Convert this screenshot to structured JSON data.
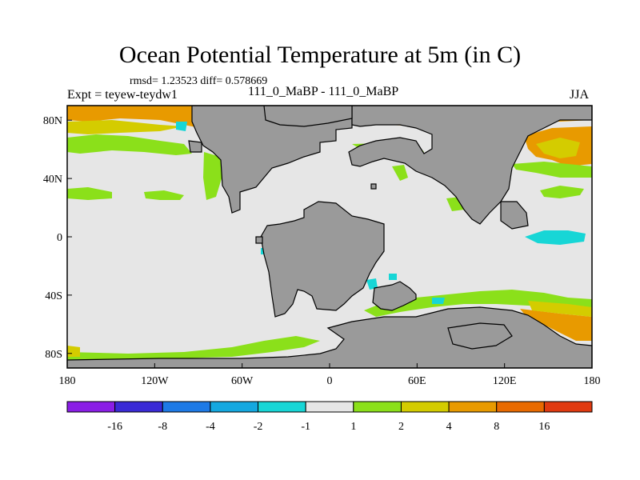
{
  "title": "Ocean Potential Temperature at 5m (in C)",
  "stats": "rmsd= 1.23523 diff= 0.578669",
  "experiment": "Expt = teyew-teydw1",
  "runs": "111_0_MaBP - 111_0_MaBP",
  "season": "JJA",
  "colors": {
    "land": "#9a9a9a",
    "neutral": "#e6e6e6",
    "pos1": "#8be01a",
    "pos2": "#d4cc00",
    "pos3": "#e89a00",
    "neg1": "#17d6d6",
    "neg2": "#14a8e0"
  },
  "map": {
    "lon_range": [
      -180,
      180
    ],
    "lat_range": [
      -90,
      90
    ],
    "lon_ticks": [
      {
        "value": -180,
        "label": "180"
      },
      {
        "value": -120,
        "label": "120W"
      },
      {
        "value": -60,
        "label": "60W"
      },
      {
        "value": 0,
        "label": "0"
      },
      {
        "value": 60,
        "label": "60E"
      },
      {
        "value": 120,
        "label": "120E"
      },
      {
        "value": 180,
        "label": "180"
      }
    ],
    "lat_ticks": [
      {
        "value": 80,
        "label": "80N"
      },
      {
        "value": 40,
        "label": "40N"
      },
      {
        "value": 0,
        "label": "0"
      },
      {
        "value": -40,
        "label": "40S"
      },
      {
        "value": -80,
        "label": "80S"
      }
    ]
  },
  "colorbar": {
    "colors": [
      "#8a1ee6",
      "#3a2ad6",
      "#1e7ae6",
      "#14a8e0",
      "#17d6d6",
      "#e6e6e6",
      "#8be01a",
      "#d4cc00",
      "#e89a00",
      "#e86a00",
      "#e03a10"
    ],
    "labels": [
      "-16",
      "-8",
      "-4",
      "-2",
      "-1",
      "1",
      "2",
      "4",
      "8",
      "16"
    ]
  }
}
